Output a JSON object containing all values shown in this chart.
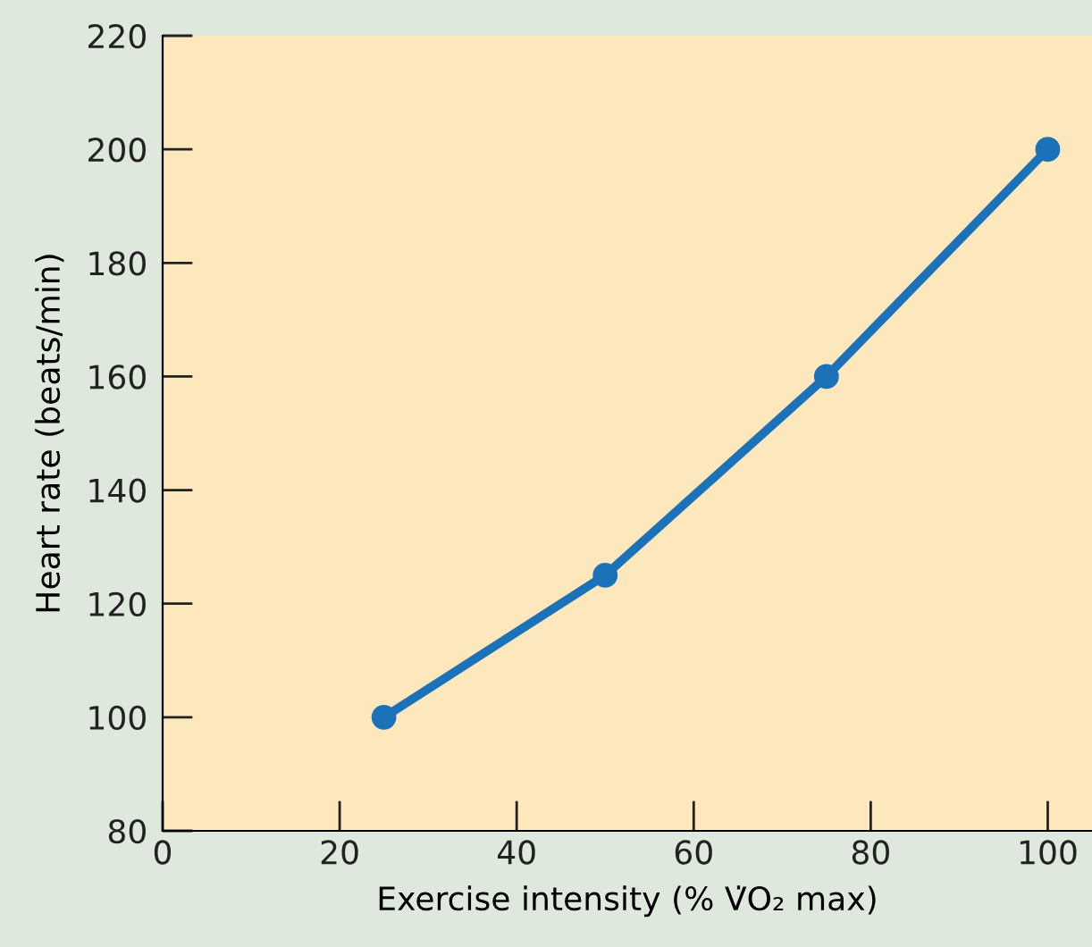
{
  "chart_data": {
    "type": "line",
    "xlabel": "Exercise intensity (% V̇O₂ max)",
    "ylabel": "Heart rate (beats/min)",
    "x": [
      25,
      50,
      75,
      100
    ],
    "series": [
      {
        "color": "#1b72b9",
        "values": [
          100,
          125,
          160,
          200
        ]
      }
    ],
    "xlim": [
      0,
      105
    ],
    "ylim": [
      80,
      220
    ],
    "xticks": [
      0,
      20,
      40,
      60,
      80,
      100
    ],
    "yticks": [
      80,
      100,
      120,
      140,
      160,
      180,
      200,
      220
    ],
    "marker": "circle",
    "line_style": "solid"
  }
}
